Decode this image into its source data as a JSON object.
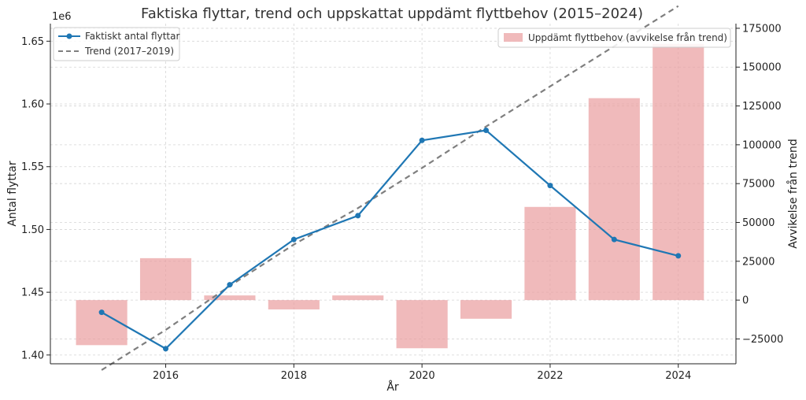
{
  "chart_data": {
    "type": "bar+line",
    "title": "Faktiska flyttar, trend och uppskattat uppdämt flyttbehov (2015–2024)",
    "xlabel": "År",
    "ylabel_left": "Antal flyttar",
    "ylabel_right": "Avvikelse från trend",
    "left_offset_label": "1e6",
    "x": [
      2015,
      2016,
      2017,
      2018,
      2019,
      2020,
      2021,
      2022,
      2023,
      2024
    ],
    "x_ticks": [
      "2016",
      "2018",
      "2020",
      "2022",
      "2024"
    ],
    "x_tick_values": [
      2016,
      2018,
      2020,
      2022,
      2024
    ],
    "xlim": [
      2014.2,
      2024.9
    ],
    "y_left_ticks": [
      "1.40",
      "1.45",
      "1.50",
      "1.55",
      "1.60",
      "1.65"
    ],
    "y_left_tick_values": [
      1.4,
      1.45,
      1.5,
      1.55,
      1.6,
      1.65
    ],
    "ylim_left": [
      1.393,
      1.664
    ],
    "y_right_ticks": [
      "−25000",
      "0",
      "25000",
      "50000",
      "75000",
      "100000",
      "125000",
      "150000",
      "175000"
    ],
    "y_right_tick_values": [
      -25000,
      0,
      25000,
      50000,
      75000,
      100000,
      125000,
      150000,
      175000
    ],
    "ylim_right": [
      -41000,
      178000
    ],
    "grid": true,
    "legend_left": "top-left",
    "legend_right": "top-right",
    "series": [
      {
        "name": "Faktiskt antal flyttar",
        "kind": "line",
        "axis": "left",
        "color": "#1f77b4",
        "values": [
          1.434,
          1.405,
          1.456,
          1.492,
          1.511,
          1.571,
          1.579,
          1.535,
          1.492,
          1.479
        ]
      },
      {
        "name": "Trend (2017–2019)",
        "kind": "dashed-line",
        "axis": "left",
        "color": "#7f7f7f",
        "values": [
          1.388,
          1.42,
          1.455,
          1.488,
          1.517,
          1.549,
          1.582,
          1.614,
          1.646,
          1.678
        ]
      },
      {
        "name": "Uppdämt flyttbehov (avvikelse från trend)",
        "kind": "bar",
        "axis": "right",
        "color": "#e99c9e",
        "values": [
          -29000,
          27000,
          3000,
          -6000,
          3000,
          -31000,
          -12000,
          60000,
          130000,
          165000
        ]
      }
    ]
  }
}
